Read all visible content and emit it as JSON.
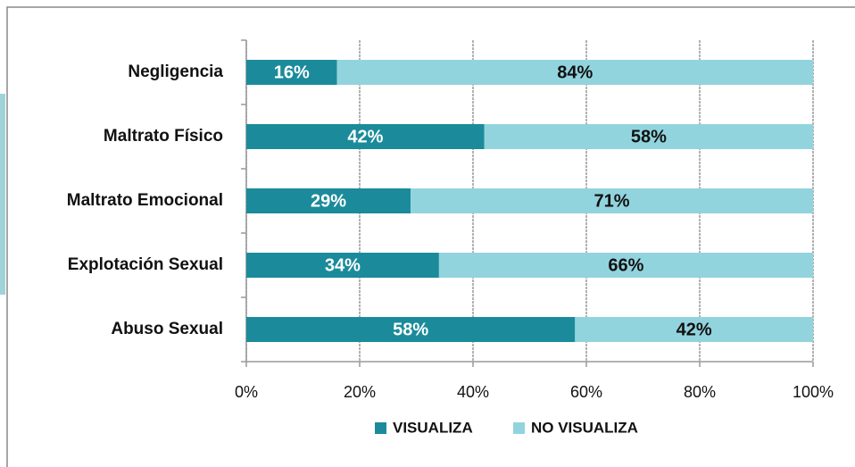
{
  "chart_data": {
    "type": "stacked-barh",
    "categories": [
      "Negligencia",
      "Maltrato Físico",
      "Maltrato Emocional",
      "Explotación Sexual",
      "Abuso Sexual"
    ],
    "series": [
      {
        "name": "VISUALIZA",
        "color": "#1b8b9b",
        "values": [
          16,
          42,
          29,
          34,
          58
        ],
        "value_labels": [
          "16%",
          "42%",
          "29%",
          "34%",
          "58%"
        ]
      },
      {
        "name": "NO VISUALIZA",
        "color": "#92d4dd",
        "values": [
          84,
          58,
          71,
          66,
          42
        ],
        "value_labels": [
          "84%",
          "58%",
          "71%",
          "66%",
          "42%"
        ]
      }
    ],
    "xlim": [
      0,
      100
    ],
    "xticks": [
      {
        "value": 0,
        "label": "0%"
      },
      {
        "value": 20,
        "label": "20%"
      },
      {
        "value": 40,
        "label": "40%"
      },
      {
        "value": 60,
        "label": "60%"
      },
      {
        "value": 80,
        "label": "80%"
      },
      {
        "value": 100,
        "label": "100%"
      }
    ],
    "grid": true,
    "legend": "bottom"
  }
}
